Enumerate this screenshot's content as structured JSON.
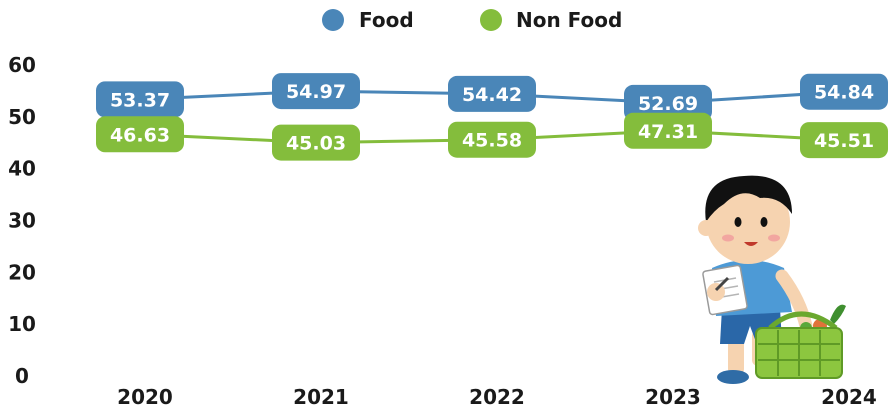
{
  "chart_data": {
    "type": "line",
    "title": "",
    "xlabel": "",
    "ylabel": "",
    "categories": [
      "2020",
      "2021",
      "2022",
      "2023",
      "2024"
    ],
    "ylim": [
      0,
      60
    ],
    "yticks": [
      "0",
      "10",
      "20",
      "30",
      "40",
      "50",
      "60"
    ],
    "grid": false,
    "legend_position": "top-center",
    "data_labels": true,
    "series": [
      {
        "name": "Food",
        "color": "#4a86b8",
        "values": [
          53.37,
          54.97,
          54.42,
          52.69,
          54.84
        ],
        "labels": [
          "53.37",
          "54.97",
          "54.42",
          "52.69",
          "54.84"
        ]
      },
      {
        "name": "Non Food",
        "color": "#84bd3c",
        "values": [
          46.63,
          45.03,
          45.58,
          47.31,
          45.51
        ],
        "labels": [
          "46.63",
          "45.03",
          "45.58",
          "47.31",
          "45.51"
        ]
      }
    ]
  },
  "illustration": {
    "icon": "boy-shopping-basket-icon"
  }
}
